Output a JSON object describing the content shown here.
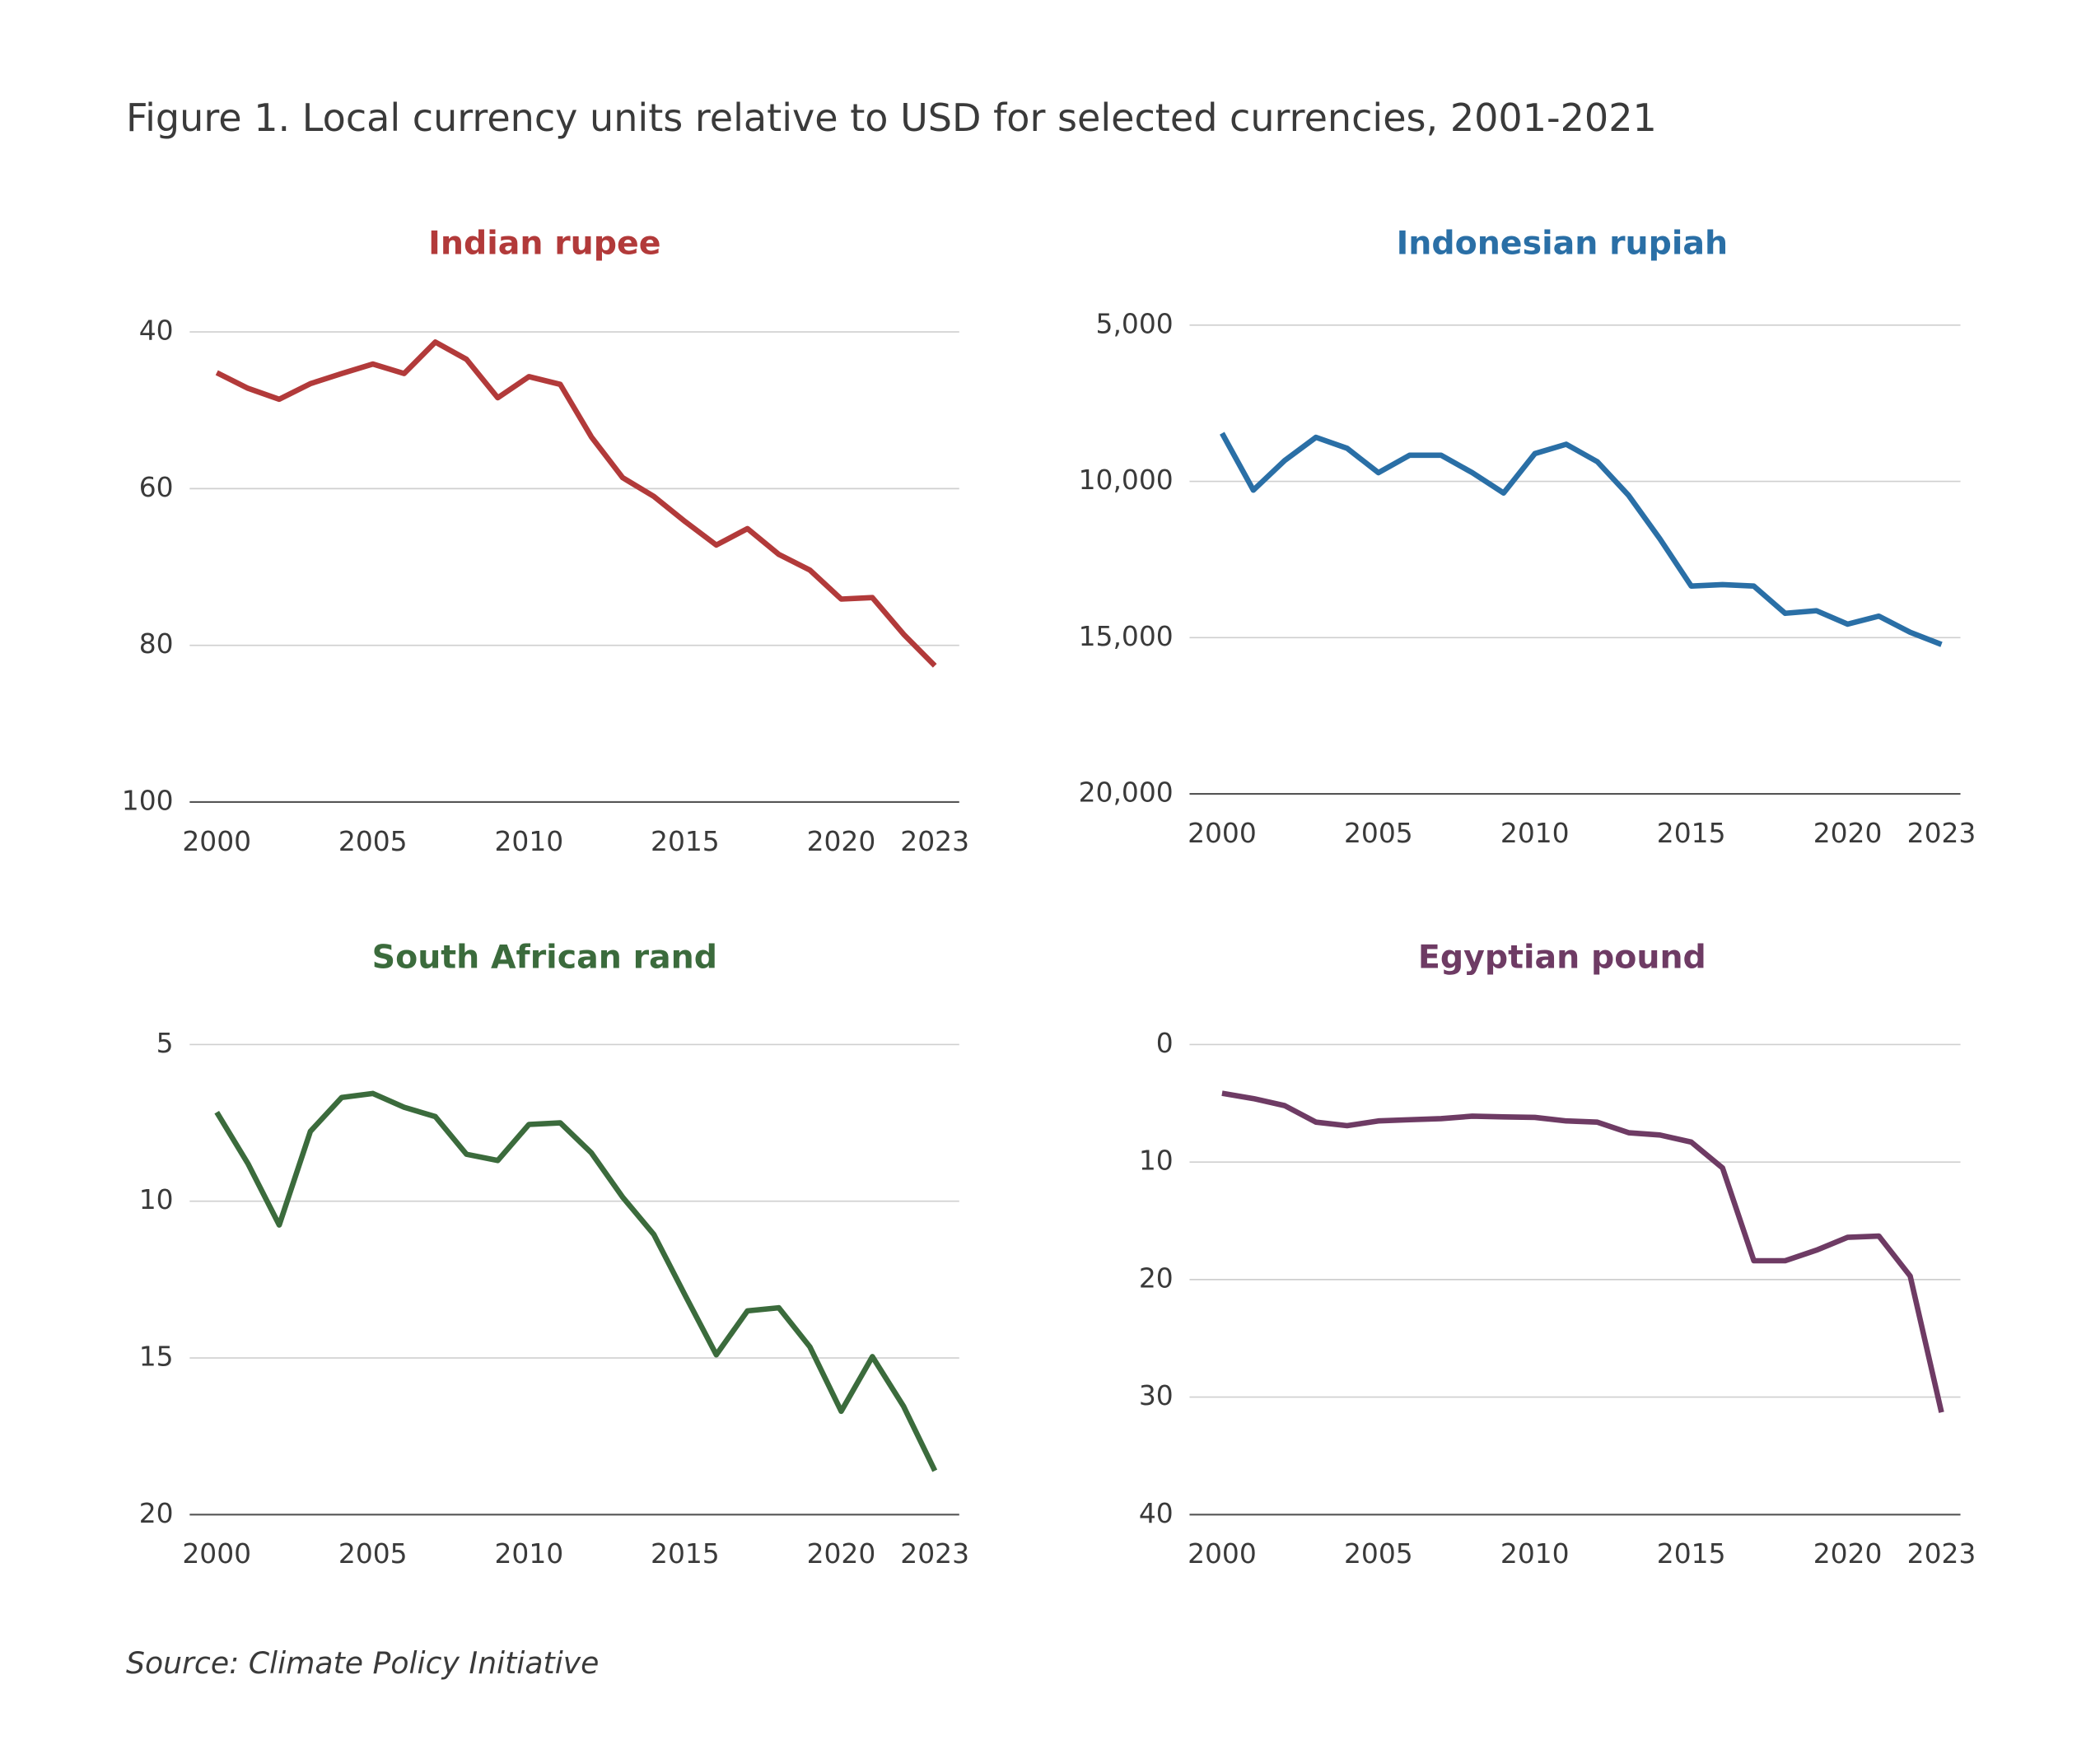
{
  "figure_title": "Figure 1. Local currency units relative to USD for selected currencies, 2001-2021",
  "source": "Source: Climate Policy Initiative",
  "chart_data": [
    {
      "type": "line",
      "title": "Indian rupee",
      "color": "#b23a3a",
      "y_reversed": true,
      "x": [
        2000,
        2001,
        2002,
        2003,
        2004,
        2005,
        2006,
        2007,
        2008,
        2009,
        2010,
        2011,
        2012,
        2013,
        2014,
        2015,
        2016,
        2017,
        2018,
        2019,
        2020,
        2021,
        2022,
        2023
      ],
      "values": [
        45.2,
        47.2,
        48.6,
        46.6,
        45.3,
        44.1,
        45.3,
        41.3,
        43.5,
        48.4,
        45.7,
        46.7,
        53.4,
        58.6,
        61.0,
        64.2,
        67.2,
        65.1,
        68.4,
        70.4,
        74.1,
        73.9,
        78.6,
        82.6
      ],
      "xlim": [
        2000,
        2023
      ],
      "xticks": [
        2000,
        2005,
        2010,
        2015,
        2020,
        2023
      ],
      "ylim": [
        40,
        100
      ],
      "yticks": [
        40,
        60,
        80,
        100
      ]
    },
    {
      "type": "line",
      "title": "Indonesian rupiah",
      "color": "#2a6fa6",
      "y_reversed": true,
      "x": [
        2000,
        2001,
        2002,
        2003,
        2004,
        2005,
        2006,
        2007,
        2008,
        2009,
        2010,
        2011,
        2012,
        2013,
        2014,
        2015,
        2016,
        2017,
        2018,
        2019,
        2020,
        2021,
        2022,
        2023
      ],
      "values": [
        8460,
        10280,
        9330,
        8590,
        8940,
        9720,
        9160,
        9160,
        9720,
        10370,
        9110,
        8810,
        9370,
        10450,
        11840,
        13350,
        13300,
        13350,
        14220,
        14140,
        14570,
        14310,
        14830,
        15220
      ],
      "xlim": [
        2000,
        2023
      ],
      "xticks": [
        2000,
        2005,
        2010,
        2015,
        2020,
        2023
      ],
      "ylim": [
        5000,
        20000
      ],
      "yticks": [
        {
          "value": 5000,
          "label": "5,000"
        },
        {
          "value": 10000,
          "label": "10,000"
        },
        {
          "value": 15000,
          "label": "15,000"
        },
        {
          "value": 20000,
          "label": "20,000"
        }
      ]
    },
    {
      "type": "line",
      "title": "South African rand",
      "color": "#3b6b3c",
      "y_reversed": true,
      "x": [
        2000,
        2001,
        2002,
        2003,
        2004,
        2005,
        2006,
        2007,
        2008,
        2009,
        2010,
        2011,
        2012,
        2013,
        2014,
        2015,
        2016,
        2017,
        2018,
        2019,
        2020,
        2021,
        2022,
        2023
      ],
      "values": [
        7.16,
        8.8,
        10.76,
        7.77,
        6.69,
        6.56,
        7.0,
        7.3,
        8.5,
        8.7,
        7.55,
        7.5,
        8.46,
        9.87,
        11.06,
        13.0,
        14.9,
        13.5,
        13.4,
        14.65,
        16.7,
        14.96,
        16.55,
        18.6
      ],
      "xlim": [
        2000,
        2023
      ],
      "xticks": [
        2000,
        2005,
        2010,
        2015,
        2020,
        2023
      ],
      "ylim": [
        5,
        20
      ],
      "yticks": [
        5,
        10,
        15,
        20
      ]
    },
    {
      "type": "line",
      "title": "Egyptian pound",
      "color": "#6e3b64",
      "y_reversed": true,
      "x": [
        2000,
        2001,
        2002,
        2003,
        2004,
        2005,
        2006,
        2007,
        2008,
        2009,
        2010,
        2011,
        2012,
        2013,
        2014,
        2015,
        2016,
        2017,
        2018,
        2019,
        2020,
        2021,
        2022,
        2023
      ],
      "values": [
        4.15,
        4.6,
        5.2,
        6.6,
        6.9,
        6.5,
        6.4,
        6.3,
        6.1,
        6.15,
        6.2,
        6.5,
        6.6,
        7.5,
        7.7,
        8.3,
        10.5,
        18.4,
        18.4,
        17.5,
        16.4,
        16.3,
        19.7,
        31.3
      ],
      "xlim": [
        2000,
        2023
      ],
      "xticks": [
        2000,
        2005,
        2010,
        2015,
        2020,
        2023
      ],
      "ylim": [
        0,
        40
      ],
      "yticks": [
        0,
        10,
        20,
        30,
        40
      ]
    }
  ]
}
